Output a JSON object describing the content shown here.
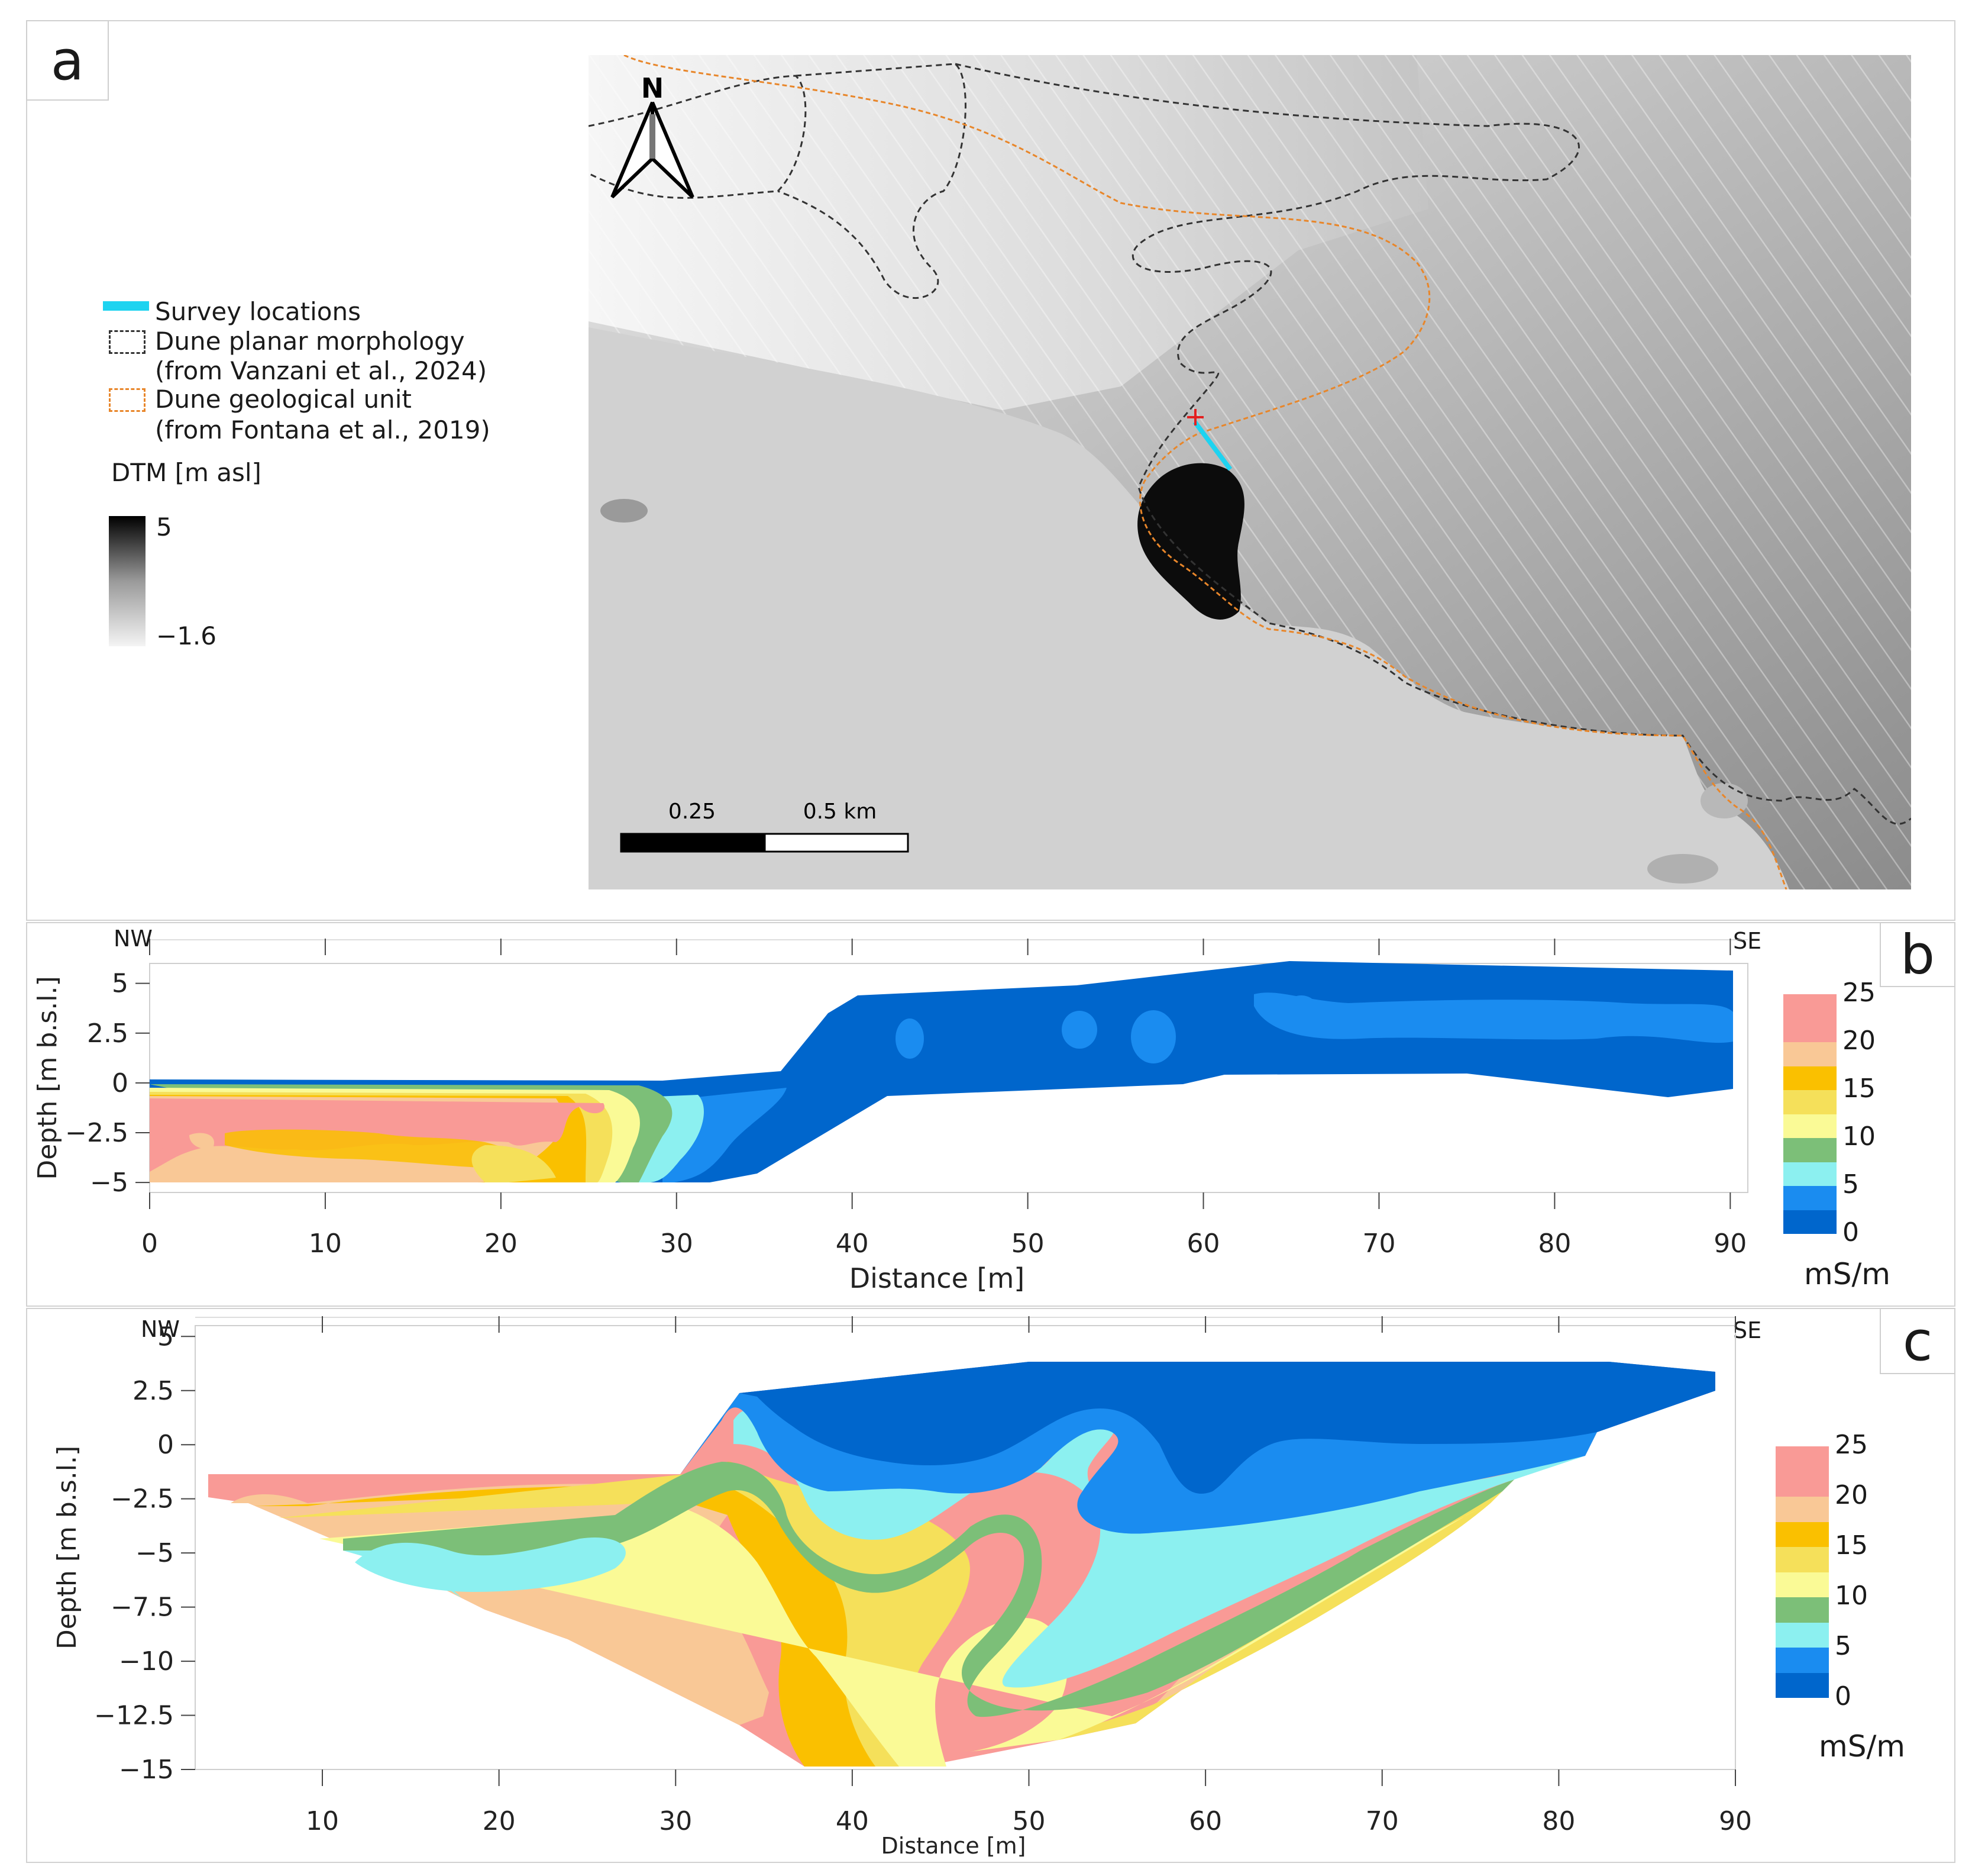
{
  "panel_a": {
    "letter": "a",
    "north_label": "N",
    "legend": {
      "survey": "Survey locations",
      "dune_morph": "Dune planar morphology",
      "dune_morph_src": "(from Vanzani et al., 2024)",
      "dune_geo": "Dune geological unit",
      "dune_geo_src": "(from Fontana et al., 2019)",
      "dtm_title": "DTM [m asl]",
      "dtm_max": "5",
      "dtm_min": "−1.6"
    },
    "scale": {
      "mid": "0.25",
      "end": "0.5 km"
    },
    "colors": {
      "survey": "#1ed3f0",
      "dune_morph": "#333333",
      "dune_geo": "#e8862a",
      "cross": "#e32020"
    }
  },
  "panel_b": {
    "letter": "b",
    "nw": "NW",
    "se": "SE",
    "unit": "mS/m"
  },
  "panel_c": {
    "letter": "c",
    "nw": "NW",
    "se": "SE",
    "unit": "mS/m"
  },
  "chart_data": [
    {
      "type": "heatmap",
      "panel": "b",
      "xlabel": "Distance [m]",
      "ylabel": "Depth [m b.s.l.]",
      "xlim": [
        0,
        91
      ],
      "ylim": [
        -5.5,
        6
      ],
      "xticks": [
        0,
        10,
        20,
        30,
        40,
        50,
        60,
        70,
        80,
        90
      ],
      "yticks": [
        5,
        2.5,
        0,
        -2.5,
        -5
      ],
      "ytick_labels": [
        "5",
        "2.5",
        "0",
        "−2.5",
        "−5"
      ],
      "colorbar": {
        "ticks": [
          25,
          20,
          15,
          10,
          5,
          0
        ],
        "bins": [
          {
            "range": [
              0,
              2.5
            ],
            "color": "#0066cc"
          },
          {
            "range": [
              2.5,
              5
            ],
            "color": "#1a8cf0"
          },
          {
            "range": [
              5,
              7.5
            ],
            "color": "#8cf0f0"
          },
          {
            "range": [
              7.5,
              10
            ],
            "color": "#7cbf78"
          },
          {
            "range": [
              10,
              12.5
            ],
            "color": "#fafa96"
          },
          {
            "range": [
              12.5,
              15
            ],
            "color": "#f5e05a"
          },
          {
            "range": [
              15,
              17.5
            ],
            "color": "#fac000"
          },
          {
            "range": [
              17.5,
              20
            ],
            "color": "#f9c896"
          },
          {
            "range": [
              20,
              25
            ],
            "color": "#f99a96"
          }
        ]
      }
    },
    {
      "type": "heatmap",
      "panel": "c",
      "xlabel": "Distance [m]",
      "ylabel": "Depth [m b.s.l.]",
      "xlim": [
        2.8,
        90
      ],
      "ylim": [
        -15,
        5.5
      ],
      "xticks": [
        10,
        20,
        30,
        40,
        50,
        60,
        70,
        80,
        90
      ],
      "yticks": [
        5,
        2.5,
        0,
        -2.5,
        -5,
        -7.5,
        -10,
        -12.5,
        -15
      ],
      "ytick_labels": [
        "5",
        "2.5",
        "0",
        "−2.5",
        "−5",
        "−7.5",
        "−10",
        "−12.5",
        "−15"
      ],
      "colorbar": {
        "ticks": [
          25,
          20,
          15,
          10,
          5,
          0
        ],
        "bins": [
          {
            "range": [
              0,
              2.5
            ],
            "color": "#0066cc"
          },
          {
            "range": [
              2.5,
              5
            ],
            "color": "#1a8cf0"
          },
          {
            "range": [
              5,
              7.5
            ],
            "color": "#8cf0f0"
          },
          {
            "range": [
              7.5,
              10
            ],
            "color": "#7cbf78"
          },
          {
            "range": [
              10,
              12.5
            ],
            "color": "#fafa96"
          },
          {
            "range": [
              12.5,
              15
            ],
            "color": "#f5e05a"
          },
          {
            "range": [
              15,
              17.5
            ],
            "color": "#fac000"
          },
          {
            "range": [
              17.5,
              20
            ],
            "color": "#f9c896"
          },
          {
            "range": [
              20,
              25
            ],
            "color": "#f99a96"
          }
        ]
      }
    }
  ]
}
